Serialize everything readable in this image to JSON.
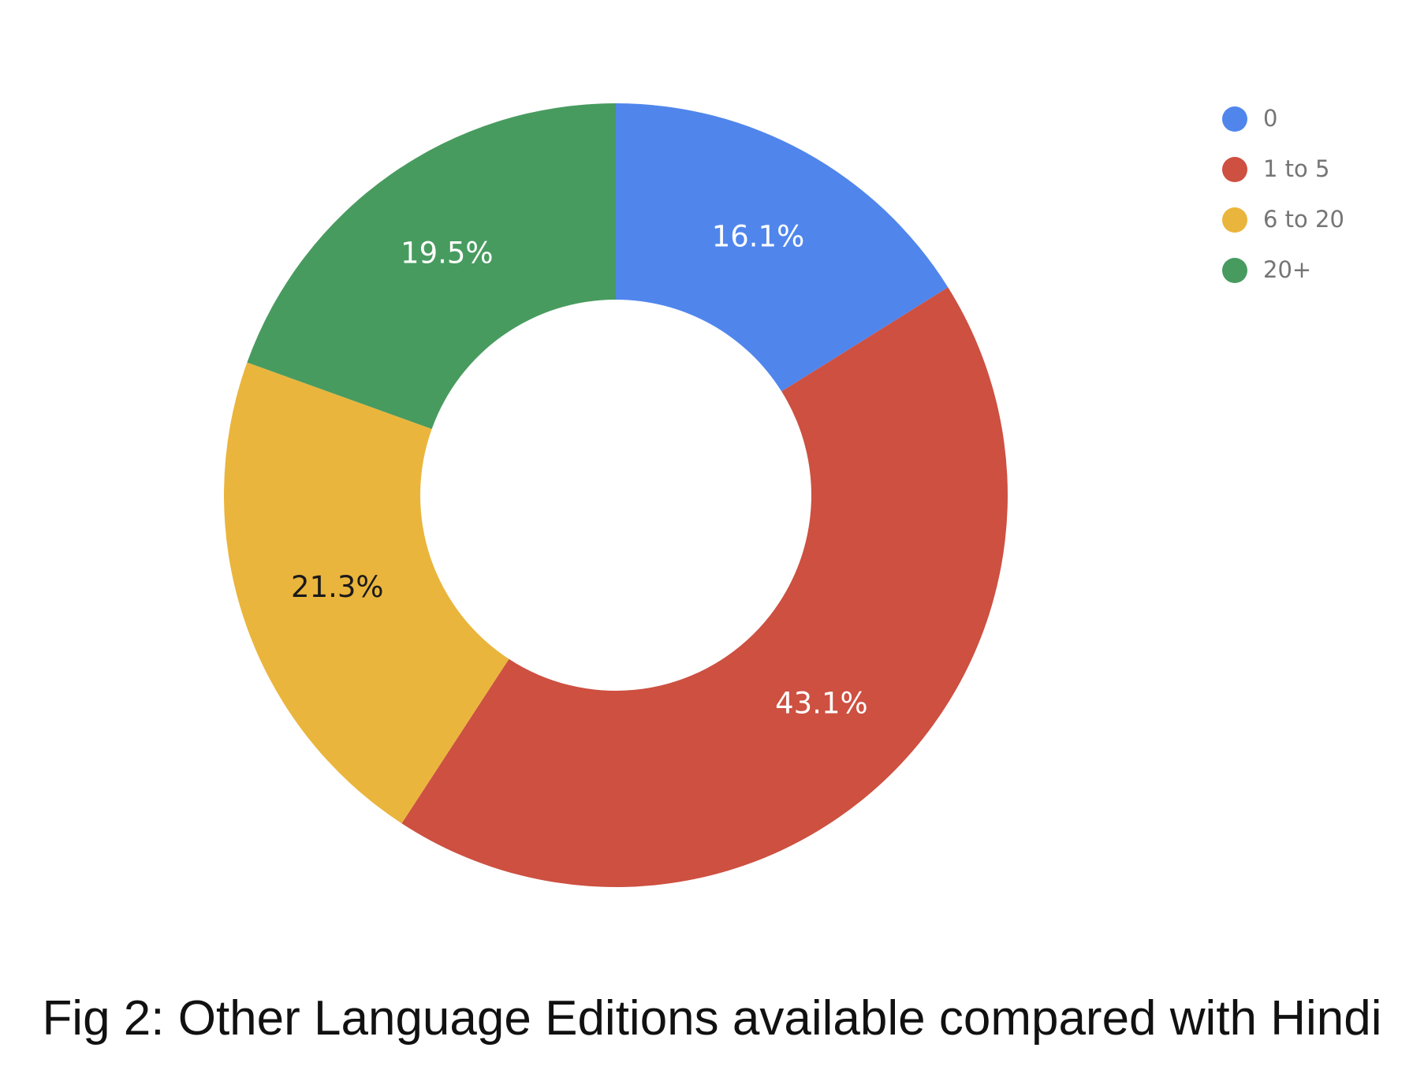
{
  "caption": "Fig 2: Other Language Editions available compared with Hindi",
  "chart_data": {
    "type": "pie",
    "donut": true,
    "title": "",
    "legend_position": "top-right",
    "categories": [
      "0",
      "1 to 5",
      "6 to 20",
      "20+"
    ],
    "values": [
      16.1,
      43.1,
      21.3,
      19.5
    ],
    "labels": [
      "16.1%",
      "43.1%",
      "21.3%",
      "19.5%"
    ],
    "colors": [
      "#5086EC",
      "#CD5041",
      "#EAB53C",
      "#489B5F"
    ],
    "label_colors": [
      "#ffffff",
      "#ffffff",
      "#1a1a1a",
      "#ffffff"
    ]
  }
}
